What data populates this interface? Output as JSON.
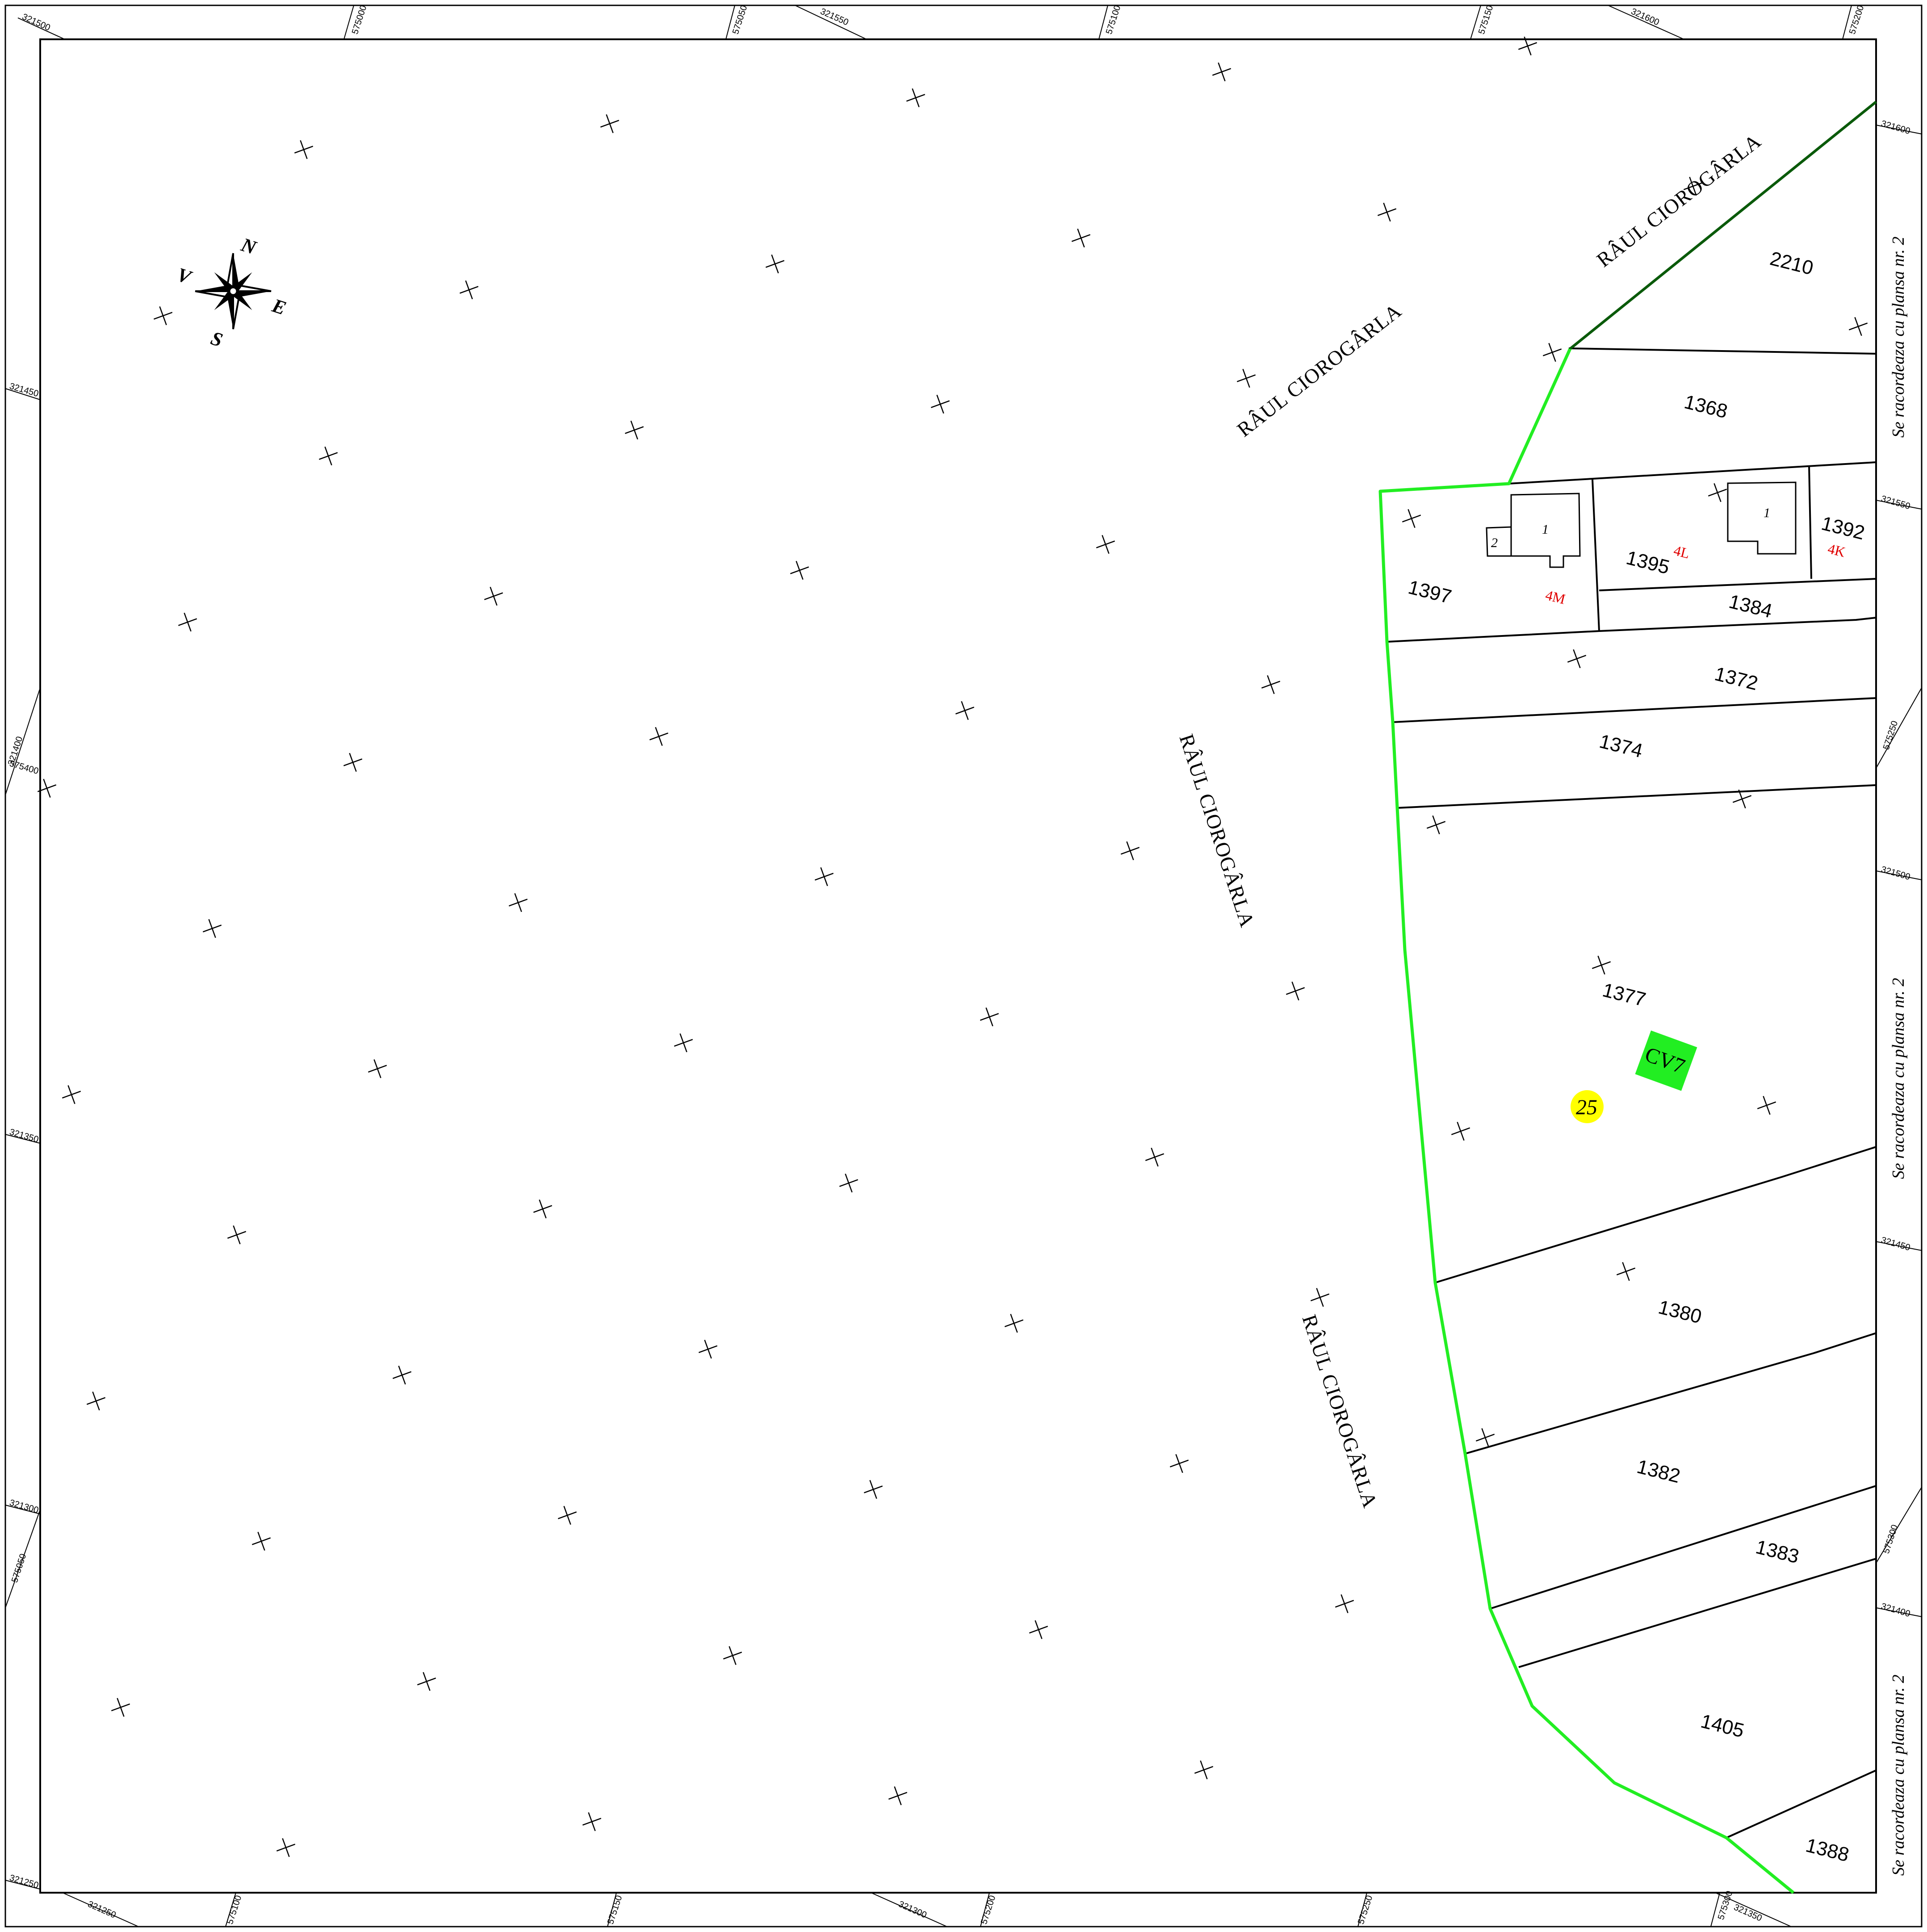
{
  "colors": {
    "boundary_green": "#22ee22",
    "dark_green": "#0a5a0a",
    "cv_fill": "#22ee22",
    "marker_yellow": "#ffff00",
    "red_label": "#e00000",
    "line": "#000000"
  },
  "north_arrow": {
    "icon": "compass-rose-icon",
    "n": "N",
    "s": "S",
    "e": "E",
    "v": "V"
  },
  "rivers": {
    "label_1": "RÂUL CIOROGÂRLA",
    "label_2": "RÂUL CIOROGÂRLA",
    "label_3": "RÂUL CIOROGÂRLA",
    "label_4": "RÂUL CIOROGÂRLA"
  },
  "parcels": {
    "p2210": "2210",
    "p1368": "1368",
    "p1397": "1397",
    "p1395": "1395",
    "p1392": "1392",
    "p1384": "1384",
    "p1372": "1372",
    "p1374": "1374",
    "p1377": "1377",
    "p1380": "1380",
    "p1382": "1382",
    "p1383": "1383",
    "p1405": "1405",
    "p1388": "1388"
  },
  "buildings": {
    "b1_left": "1",
    "b2_left": "2",
    "b1_right": "1"
  },
  "red_labels": {
    "l4m": "4M",
    "l4l": "4L",
    "l4k": "4K"
  },
  "markers": {
    "cv7": "CV7",
    "n25": "25"
  },
  "side_notes": {
    "top": "Se racordeaza cu plansa nr. 2",
    "middle": "Se racordeaza cu plansa nr. 2",
    "bottom": "Se racordeaza cu plansa nr. 2"
  },
  "grid_labels": {
    "top": [
      "321500",
      "575000",
      "575050",
      "321550",
      "575100",
      "575150",
      "321600",
      "575200"
    ],
    "bottom": [
      "321250",
      "575100",
      "575150",
      "321300",
      "575200",
      "575250",
      "575300",
      "321350"
    ],
    "left": [
      "321450",
      "321400",
      "575400",
      "321350",
      "321300",
      "575050",
      "321250"
    ],
    "right": [
      "321600",
      "321550",
      "575250",
      "321500",
      "321450",
      "575300",
      "321400"
    ]
  }
}
